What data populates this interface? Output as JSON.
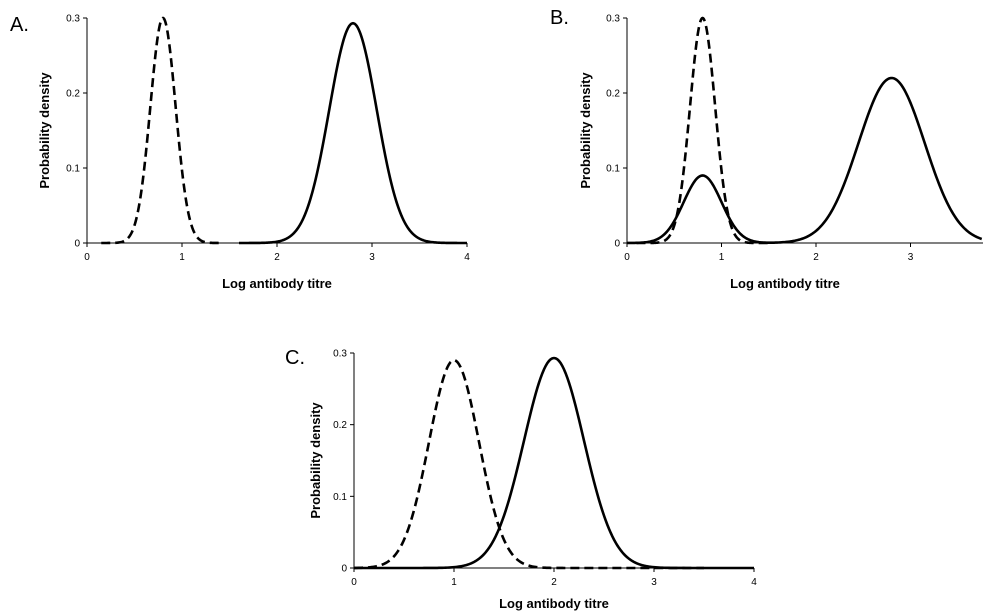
{
  "chart_data": [
    {
      "panel": "A.",
      "type": "line",
      "xlabel": "Log antibody titre",
      "ylabel": "Probability density",
      "xlim": [
        0,
        4
      ],
      "ylim": [
        0,
        0.3
      ],
      "x_ticks": [
        "0",
        "1",
        "2",
        "3",
        "4"
      ],
      "y_ticks": [
        "0",
        "0.1",
        "0.2",
        "0.3"
      ],
      "series": [
        {
          "style": "dashed",
          "x_range": [
            0.15,
            1.4
          ],
          "mean": 0.8,
          "sd": 0.133,
          "peak": 0.3
        },
        {
          "style": "solid",
          "x_range": [
            1.6,
            4.0
          ],
          "mean": 2.8,
          "sd": 0.25,
          "peak": 0.293
        }
      ]
    },
    {
      "panel": "B.",
      "type": "line",
      "xlabel": "Log antibody titre",
      "ylabel": "Probability density",
      "xlim": [
        0,
        4
      ],
      "ylim": [
        0,
        0.3
      ],
      "x_ticks": [
        "0",
        "1",
        "2",
        "3"
      ],
      "y_ticks": [
        "0",
        "0.1",
        "0.2",
        "0.3"
      ],
      "series": [
        {
          "style": "dashed",
          "x_range": [
            0.1,
            1.5
          ],
          "mean": 0.8,
          "sd": 0.133,
          "peak": 0.3
        },
        {
          "style": "solid",
          "x_range": [
            0.0,
            3.85
          ],
          "components": [
            {
              "mean": 0.8,
              "sd": 0.2,
              "peak": 0.09
            },
            {
              "mean": 2.8,
              "sd": 0.35,
              "peak": 0.22
            }
          ]
        }
      ]
    },
    {
      "panel": "C.",
      "type": "line",
      "xlabel": "Log antibody titre",
      "ylabel": "Probability density",
      "xlim": [
        0,
        4
      ],
      "ylim": [
        0,
        0.3
      ],
      "x_ticks": [
        "0",
        "1",
        "2",
        "3",
        "4"
      ],
      "y_ticks": [
        "0",
        "0.1",
        "0.2",
        "0.3"
      ],
      "series": [
        {
          "style": "dashed",
          "x_range": [
            0.0,
            3.5
          ],
          "mean": 1.0,
          "sd": 0.25,
          "peak": 0.29
        },
        {
          "style": "solid",
          "x_range": [
            0.0,
            4.0
          ],
          "mean": 2.0,
          "sd": 0.3,
          "peak": 0.293
        }
      ]
    }
  ]
}
